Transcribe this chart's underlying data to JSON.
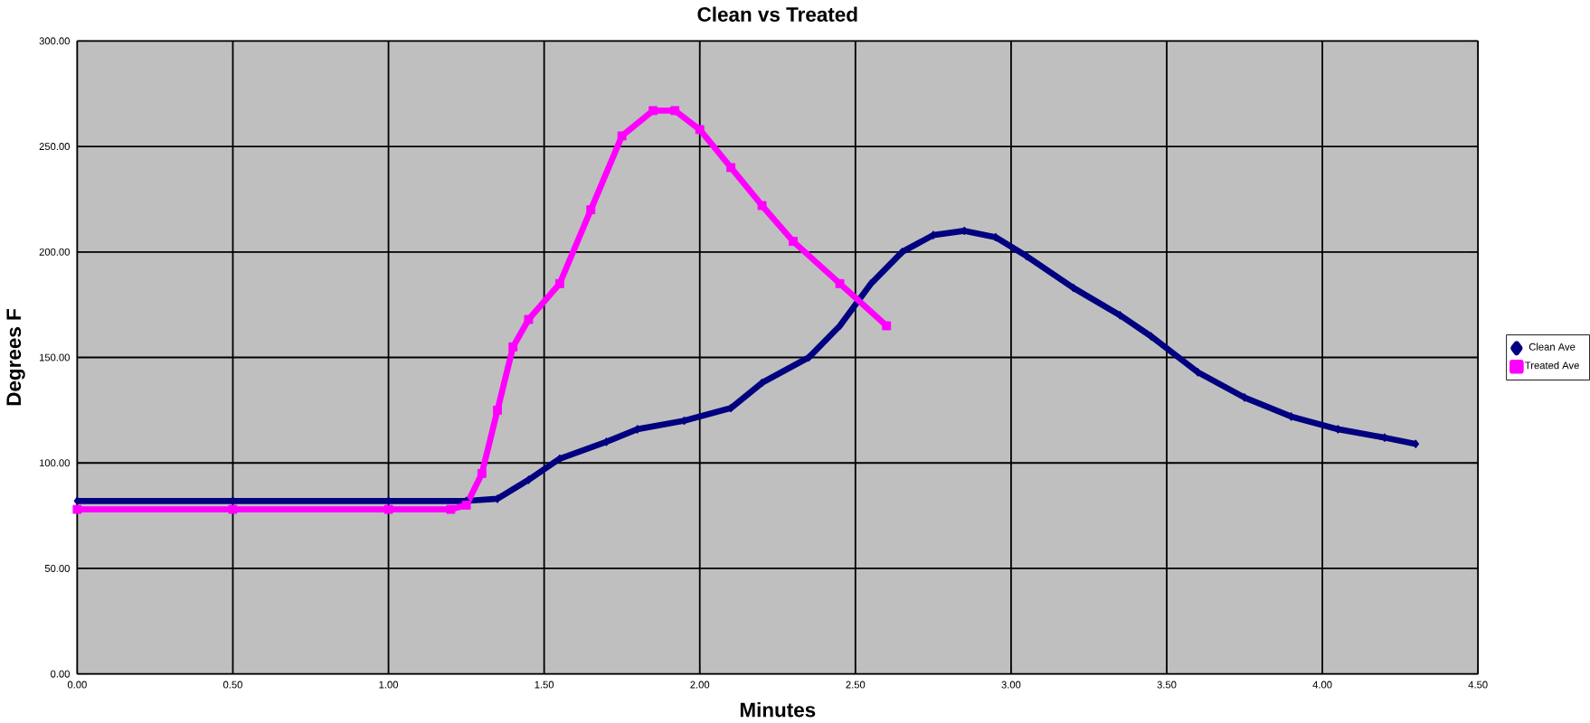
{
  "chart_data": {
    "type": "line",
    "title": "Clean vs Treated",
    "xlabel": "Minutes",
    "ylabel": "Degrees F",
    "xlim": [
      0,
      4.5
    ],
    "ylim": [
      0,
      300
    ],
    "xticks": [
      {
        "value": 0,
        "label": "0.00"
      },
      {
        "value": 0.5,
        "label": "0.50"
      },
      {
        "value": 1,
        "label": "1.00"
      },
      {
        "value": 1.5,
        "label": "1.50"
      },
      {
        "value": 2,
        "label": "2.00"
      },
      {
        "value": 2.5,
        "label": "2.50"
      },
      {
        "value": 3,
        "label": "3.00"
      },
      {
        "value": 3.5,
        "label": "3.50"
      },
      {
        "value": 4,
        "label": "4.00"
      },
      {
        "value": 4.5,
        "label": "4.50"
      }
    ],
    "yticks": [
      {
        "value": 0,
        "label": "0.00"
      },
      {
        "value": 50,
        "label": "50.00"
      },
      {
        "value": 100,
        "label": "100.00"
      },
      {
        "value": 150,
        "label": "150.00"
      },
      {
        "value": 200,
        "label": "200.00"
      },
      {
        "value": 250,
        "label": "250.00"
      },
      {
        "value": 300,
        "label": "300.00"
      }
    ],
    "grid": true,
    "legend": "right",
    "line_style": "solid",
    "series": [
      {
        "name": "Clean Ave",
        "color": "#000080",
        "marker": "diamond",
        "x": [
          0,
          0.5,
          1,
          1.25,
          1.35,
          1.45,
          1.55,
          1.7,
          1.8,
          1.95,
          2.1,
          2.2,
          2.35,
          2.45,
          2.55,
          2.65,
          2.75,
          2.85,
          2.95,
          3.05,
          3.2,
          3.35,
          3.45,
          3.6,
          3.75,
          3.9,
          4.05,
          4.2,
          4.3
        ],
        "values": [
          82,
          82,
          82,
          82,
          83,
          92,
          102,
          110,
          116,
          120,
          126,
          138,
          150,
          165,
          185,
          200,
          208,
          210,
          207,
          198,
          183,
          170,
          160,
          143,
          131,
          122,
          116,
          112,
          109
        ]
      },
      {
        "name": "Treated Ave",
        "color": "#ff00ff",
        "marker": "square",
        "x": [
          0,
          0.5,
          1,
          1.2,
          1.25,
          1.3,
          1.35,
          1.4,
          1.45,
          1.55,
          1.65,
          1.75,
          1.85,
          1.92,
          2.0,
          2.1,
          2.2,
          2.3,
          2.45,
          2.6
        ],
        "values": [
          78,
          78,
          78,
          78,
          80,
          95,
          125,
          155,
          168,
          185,
          220,
          255,
          267,
          267,
          258,
          240,
          222,
          205,
          185,
          165
        ]
      }
    ]
  }
}
